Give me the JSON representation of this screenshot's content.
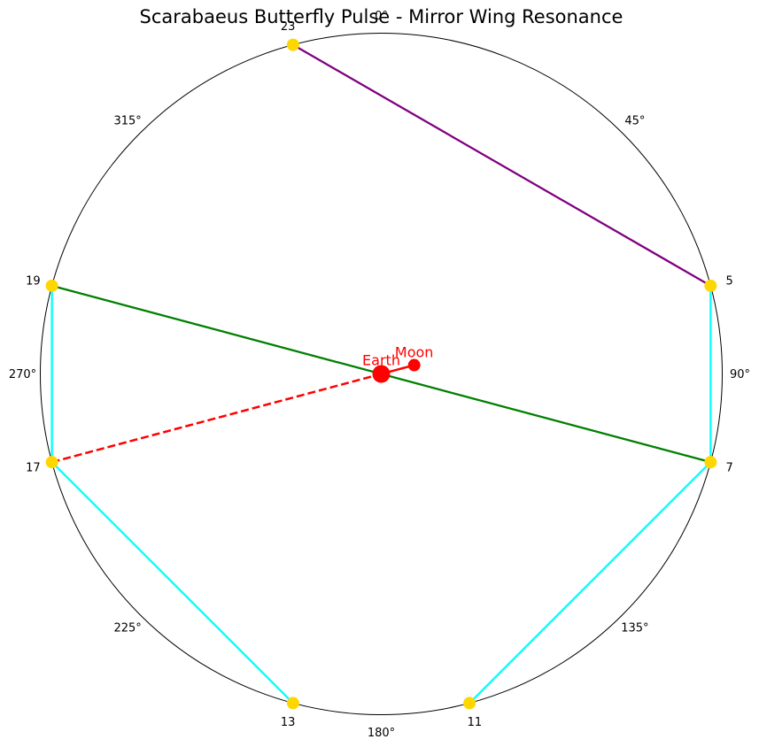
{
  "chart_data": {
    "type": "polar",
    "title": "Scarabaeus Butterfly Pulse - Mirror Wing Resonance",
    "angular_ticks": [
      {
        "angle": 0,
        "label": "0°"
      },
      {
        "angle": 45,
        "label": "45°"
      },
      {
        "angle": 90,
        "label": "90°"
      },
      {
        "angle": 135,
        "label": "135°"
      },
      {
        "angle": 180,
        "label": "180°"
      },
      {
        "angle": 225,
        "label": "225°"
      },
      {
        "angle": 270,
        "label": "270°"
      },
      {
        "angle": 315,
        "label": "315°"
      }
    ],
    "rim_points": [
      {
        "label": "5",
        "angle": 75
      },
      {
        "label": "7",
        "angle": 105
      },
      {
        "label": "11",
        "angle": 165
      },
      {
        "label": "13",
        "angle": 195
      },
      {
        "label": "17",
        "angle": 255
      },
      {
        "label": "19",
        "angle": 285
      },
      {
        "label": "23",
        "angle": 345
      }
    ],
    "segments": [
      {
        "from": "23",
        "to": "5",
        "color": "#800080",
        "style": "solid"
      },
      {
        "from": "5",
        "to": "7",
        "color": "#00ffff",
        "style": "solid"
      },
      {
        "from": "7",
        "to": "11",
        "color": "#00ffff",
        "style": "solid"
      },
      {
        "from": "13",
        "to": "17",
        "color": "#00ffff",
        "style": "solid"
      },
      {
        "from": "17",
        "to": "19",
        "color": "#00ffff",
        "style": "solid"
      },
      {
        "from": "19",
        "to": "7",
        "color": "#008000",
        "style": "solid"
      }
    ],
    "bodies": {
      "earth": {
        "label": "Earth",
        "angle": 0,
        "r": 0,
        "color": "#ff0000"
      },
      "moon": {
        "label": "Moon",
        "angle": 75,
        "r": 0.1,
        "color": "#ff0000"
      }
    },
    "moon_link": {
      "to": "17",
      "color": "#ff0000",
      "style": "dashed"
    },
    "point_color": "#ffd700",
    "grid": false,
    "theta_zero": "top",
    "theta_direction": "clockwise"
  }
}
